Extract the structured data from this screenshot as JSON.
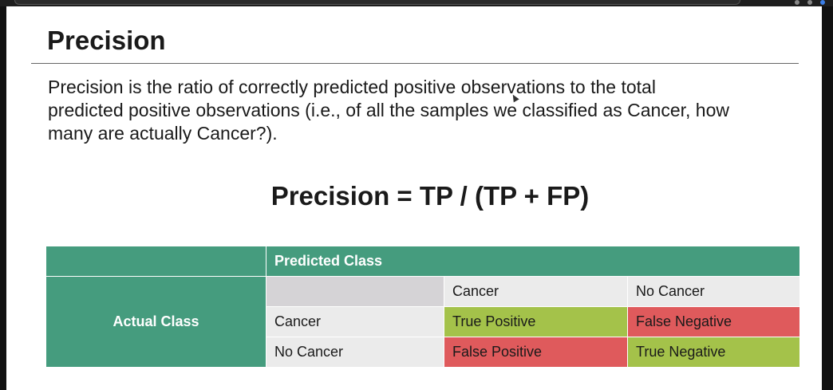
{
  "slide": {
    "title": "Precision",
    "body": "Precision is the ratio of correctly predicted positive observations to the total predicted positive observations (i.e., of all the samples we classified as Cancer, how many are actually Cancer?).",
    "formula": "Precision = TP / (TP + FP)"
  },
  "confusion_matrix": {
    "predicted_header": "Predicted Class",
    "actual_header": "Actual Class",
    "columns": [
      "Cancer",
      "No Cancer"
    ],
    "rows": [
      {
        "label": "Cancer",
        "cells": [
          "True Positive",
          "False Negative"
        ]
      },
      {
        "label": "No Cancer",
        "cells": [
          "False Positive",
          "True Negative"
        ]
      }
    ]
  },
  "colors": {
    "header_green": "#459c7e",
    "correct_cell": "#a4c24a",
    "incorrect_cell": "#df5a5c"
  }
}
